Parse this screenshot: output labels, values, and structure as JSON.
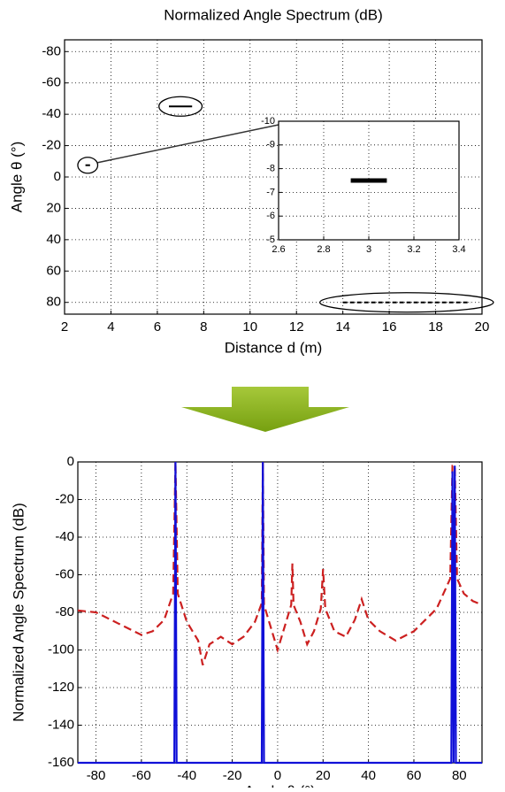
{
  "chart_data": [
    {
      "type": "segment",
      "title": "Normalized Angle Spectrum (dB)",
      "x_label": "Distance d (m)",
      "y_label": "Angle θ (°)",
      "xlim": [
        2,
        20
      ],
      "ylim": [
        -87.5,
        87.5
      ],
      "y_inverted": true,
      "xticks": [
        2,
        4,
        6,
        8,
        10,
        12,
        14,
        16,
        18,
        20
      ],
      "yticks": [
        -80,
        -60,
        -40,
        -20,
        0,
        20,
        40,
        60,
        80
      ],
      "grid": true,
      "color": "#000000",
      "segments": [
        {
          "x0": 2.9,
          "x1": 3.1,
          "y": -7.5
        },
        {
          "x0": 6.5,
          "x1": 7.5,
          "y": -45
        },
        {
          "x0": 14,
          "x1": 19.5,
          "y": 80,
          "dashed": true
        }
      ],
      "inset": {
        "xlim": [
          2.6,
          3.4
        ],
        "ylim": [
          -10,
          -5
        ],
        "y_inverted": true,
        "xticks": [
          2.6,
          2.8,
          3,
          3.2,
          3.4
        ],
        "yticks": [
          -10,
          -9,
          -8,
          -7,
          -6,
          -5
        ],
        "grid": true,
        "segments": [
          {
            "x0": 2.92,
            "x1": 3.08,
            "y": -7.5
          }
        ]
      }
    },
    {
      "type": "line",
      "x_label": "Angle θ (°)",
      "y_label": "Normalized Angle Spectrum (dB)",
      "xlim": [
        -88,
        90
      ],
      "ylim": [
        -160,
        0
      ],
      "xticks": [
        -80,
        -60,
        -40,
        -20,
        0,
        20,
        40,
        60,
        80
      ],
      "yticks": [
        -160,
        -140,
        -120,
        -100,
        -80,
        -60,
        -40,
        -20,
        0
      ],
      "grid": true,
      "series": [
        {
          "color": "#cc2020",
          "dashed": true,
          "x": [
            -88,
            -80,
            -70,
            -60,
            -55,
            -50,
            -46,
            -45,
            -44,
            -40,
            -35,
            -33,
            -30,
            -25,
            -20,
            -15,
            -10,
            -7,
            -6.5,
            -6,
            -3,
            0,
            3,
            6,
            6.5,
            7,
            10,
            13,
            16,
            19,
            20,
            21,
            25,
            30,
            34,
            37,
            40,
            45,
            52,
            60,
            70,
            76,
            77,
            78,
            79,
            82,
            86,
            90
          ],
          "values": [
            -79,
            -80,
            -86,
            -92,
            -90,
            -84,
            -70,
            0,
            -70,
            -85,
            -95,
            -108,
            -97,
            -93,
            -97,
            -93,
            -85,
            -75,
            0,
            -76,
            -88,
            -100,
            -88,
            -76,
            -54,
            -76,
            -85,
            -97,
            -90,
            -78,
            -57,
            -78,
            -90,
            -93,
            -84,
            -73,
            -84,
            -90,
            -95,
            -90,
            -78,
            -62,
            -2,
            -2,
            -62,
            -70,
            -74,
            -76
          ]
        },
        {
          "color": "#1010d8",
          "dashed": false,
          "x": [
            -88,
            -45.5,
            -45,
            -44.5,
            -7,
            -6.5,
            -6,
            76.5,
            77,
            77.5,
            78,
            78.5,
            90
          ],
          "values": [
            -160,
            -160,
            0,
            -160,
            -160,
            0,
            -160,
            -160,
            -5,
            -160,
            -2,
            -160,
            -160
          ]
        }
      ]
    }
  ]
}
